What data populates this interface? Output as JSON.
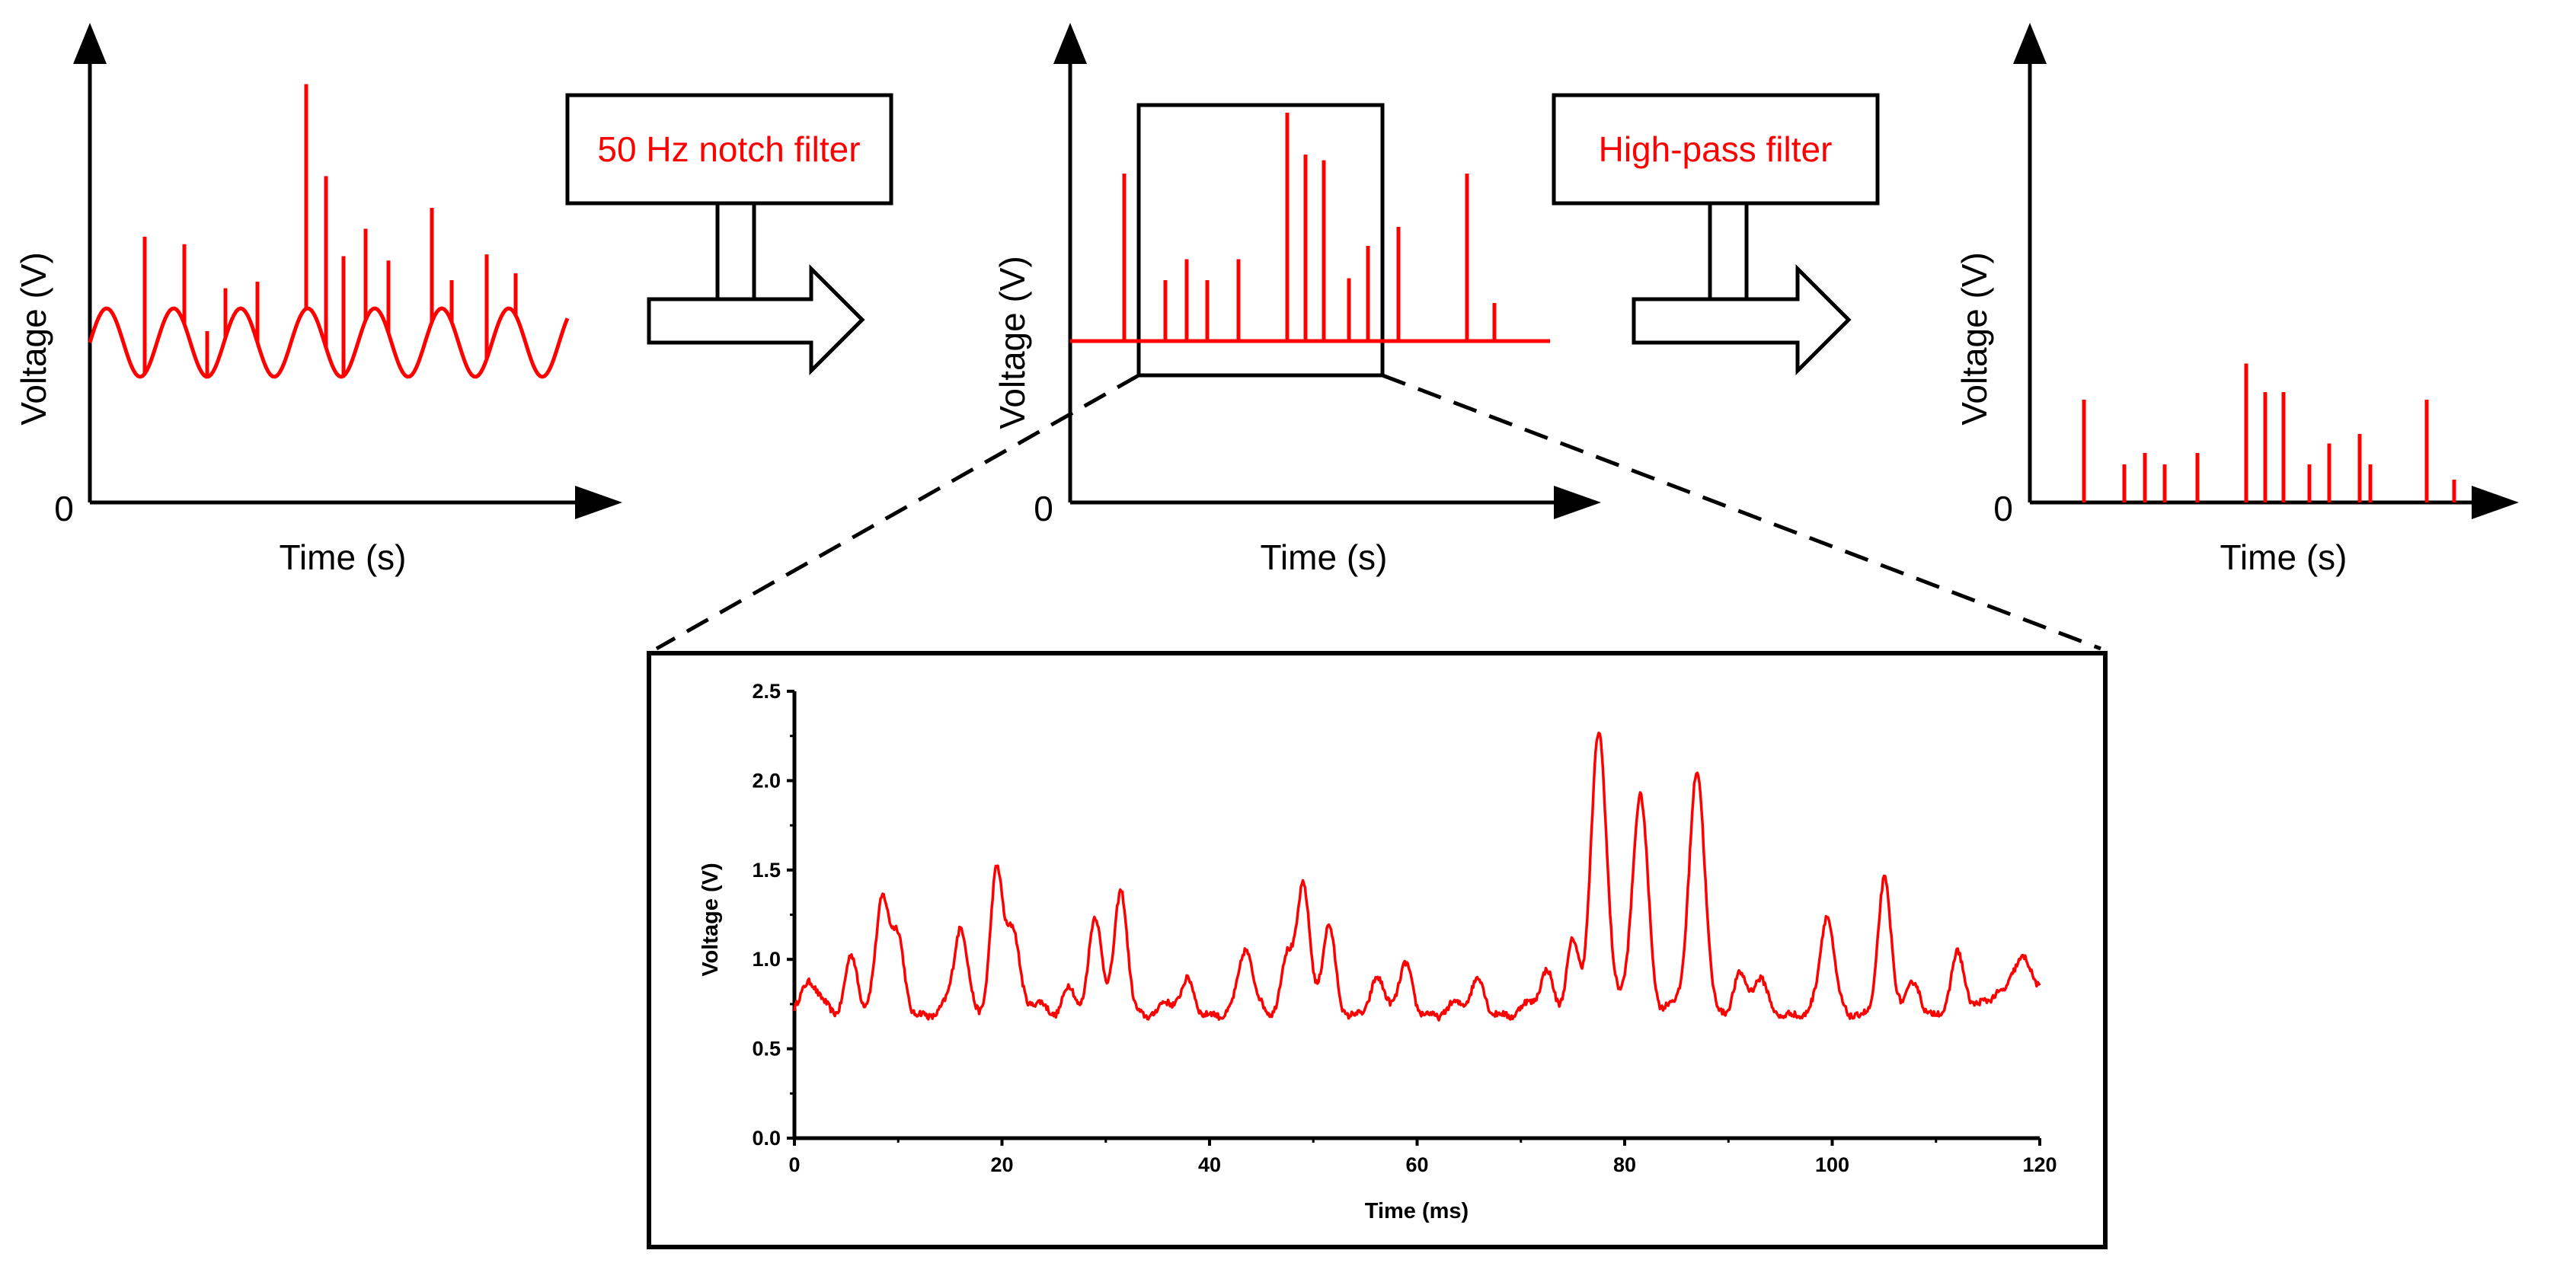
{
  "panels": {
    "raw": {
      "ylabel": "Voltage (V)",
      "xlabel": "Time (s)",
      "origin": "0"
    },
    "notched": {
      "ylabel": "Voltage (V)",
      "xlabel": "Time (s)",
      "origin": "0"
    },
    "highpassed": {
      "ylabel": "Voltage (V)",
      "xlabel": "Time (s)",
      "origin": "0"
    }
  },
  "filters": {
    "notch": {
      "label": "50 Hz notch filter"
    },
    "highpass": {
      "label": "High-pass filter"
    }
  },
  "chart_data": {
    "type": "line",
    "title": "",
    "xlabel": "Time (ms)",
    "ylabel": "Voltage (V)",
    "xlim": [
      0,
      120
    ],
    "ylim": [
      0.0,
      2.5
    ],
    "xticks": [
      "0",
      "20",
      "40",
      "60",
      "80",
      "100",
      "120"
    ],
    "yticks": [
      "0.0",
      "0.5",
      "1.0",
      "1.5",
      "2.0",
      "2.5"
    ],
    "series": [
      {
        "name": "Voltage",
        "color": "#ff0000",
        "baseline": 0.72,
        "peaks": [
          {
            "t": 1.5,
            "v": 0.85
          },
          {
            "t": 5.5,
            "v": 1.05
          },
          {
            "t": 8.5,
            "v": 1.32
          },
          {
            "t": 10.0,
            "v": 1.1
          },
          {
            "t": 16.0,
            "v": 1.15
          },
          {
            "t": 19.5,
            "v": 1.53
          },
          {
            "t": 21.0,
            "v": 1.15
          },
          {
            "t": 26.5,
            "v": 0.88
          },
          {
            "t": 29.0,
            "v": 1.2
          },
          {
            "t": 31.5,
            "v": 1.39
          },
          {
            "t": 38.0,
            "v": 0.86
          },
          {
            "t": 43.5,
            "v": 1.03
          },
          {
            "t": 47.5,
            "v": 1.05
          },
          {
            "t": 49.0,
            "v": 1.4
          },
          {
            "t": 51.5,
            "v": 1.15
          },
          {
            "t": 56.0,
            "v": 0.88
          },
          {
            "t": 59.0,
            "v": 0.95
          },
          {
            "t": 66.0,
            "v": 0.87
          },
          {
            "t": 72.5,
            "v": 0.9
          },
          {
            "t": 75.0,
            "v": 1.13
          },
          {
            "t": 77.5,
            "v": 2.23
          },
          {
            "t": 81.5,
            "v": 1.95
          },
          {
            "t": 87.0,
            "v": 2.03
          },
          {
            "t": 91.0,
            "v": 0.9
          },
          {
            "t": 93.0,
            "v": 0.86
          },
          {
            "t": 99.5,
            "v": 1.22
          },
          {
            "t": 105.0,
            "v": 1.43
          },
          {
            "t": 108.0,
            "v": 0.85
          },
          {
            "t": 112.0,
            "v": 1.02
          },
          {
            "t": 116.0,
            "v": 0.85
          },
          {
            "t": 117.5,
            "v": 0.9
          },
          {
            "t": 118.5,
            "v": 0.98
          },
          {
            "t": 120.0,
            "v": 0.8
          }
        ]
      }
    ]
  },
  "schematic": {
    "raw_spikes": [
      0.72,
      0.42,
      0.24,
      0.26,
      0.32,
      1.18,
      0.9,
      0.63,
      0.48,
      0.38,
      0.6,
      0.22,
      0.55,
      0.22
    ],
    "notched_spikes": [
      0.88,
      0.32,
      0.43,
      0.32,
      0.43,
      1.2,
      0.98,
      0.95,
      0.33,
      0.5,
      0.6,
      0.88,
      0.2
    ],
    "highpass_spikes": [
      0.54,
      0.2,
      0.26,
      0.2,
      0.26,
      0.73,
      0.58,
      0.58,
      0.2,
      0.31,
      0.36,
      0.2,
      0.54,
      0.12
    ]
  },
  "colors": {
    "signal": "#ff0000",
    "ink": "#000000"
  }
}
